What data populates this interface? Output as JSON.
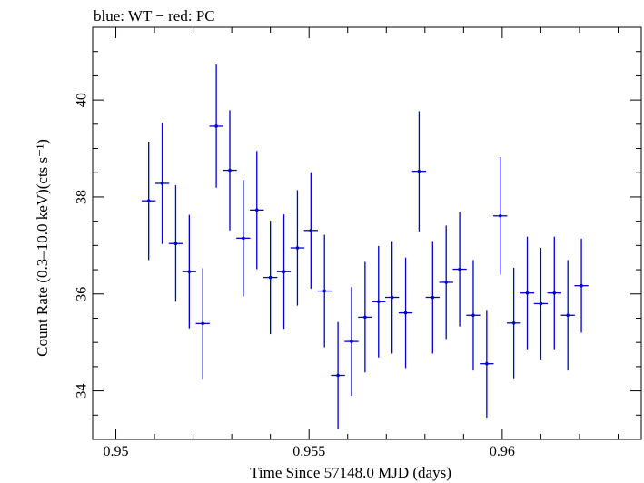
{
  "chart_data": {
    "type": "scatter",
    "title": "blue: WT − red: PC",
    "xlabel": "Time Since 57148.0 MJD (days)",
    "ylabel": "Count Rate (0.3–10.0 keV)(cts s⁻¹)",
    "xlim": [
      0.9494,
      0.9636
    ],
    "ylim": [
      33.0,
      41.5
    ],
    "x_ticks": [
      0.95,
      0.955,
      0.96
    ],
    "x_tick_labels": [
      "0.95",
      "0.955",
      "0.96"
    ],
    "y_ticks": [
      34,
      36,
      38,
      40
    ],
    "y_tick_labels": [
      "34",
      "36",
      "38",
      "40"
    ],
    "grid": false,
    "legend": "none",
    "colors": {
      "WT": "#0000cc",
      "axes": "#000000"
    },
    "series": [
      {
        "name": "WT",
        "x_halfwidth": 0.00018,
        "points": [
          {
            "x": 0.95085,
            "y": 37.92,
            "err": 1.22
          },
          {
            "x": 0.9512,
            "y": 38.28,
            "err": 1.25
          },
          {
            "x": 0.95155,
            "y": 37.04,
            "err": 1.2
          },
          {
            "x": 0.9519,
            "y": 36.46,
            "err": 1.17
          },
          {
            "x": 0.95225,
            "y": 35.39,
            "err": 1.14
          },
          {
            "x": 0.9526,
            "y": 39.46,
            "err": 1.27
          },
          {
            "x": 0.95295,
            "y": 38.55,
            "err": 1.24
          },
          {
            "x": 0.9533,
            "y": 37.15,
            "err": 1.2
          },
          {
            "x": 0.95365,
            "y": 37.73,
            "err": 1.22
          },
          {
            "x": 0.954,
            "y": 36.34,
            "err": 1.17
          },
          {
            "x": 0.95435,
            "y": 36.46,
            "err": 1.18
          },
          {
            "x": 0.9547,
            "y": 36.95,
            "err": 1.19
          },
          {
            "x": 0.95505,
            "y": 37.31,
            "err": 1.2
          },
          {
            "x": 0.9554,
            "y": 36.06,
            "err": 1.16
          },
          {
            "x": 0.95575,
            "y": 34.32,
            "err": 1.1
          },
          {
            "x": 0.9561,
            "y": 35.02,
            "err": 1.12
          },
          {
            "x": 0.95645,
            "y": 35.52,
            "err": 1.14
          },
          {
            "x": 0.9568,
            "y": 35.84,
            "err": 1.15
          },
          {
            "x": 0.95715,
            "y": 35.93,
            "err": 1.16
          },
          {
            "x": 0.9575,
            "y": 35.61,
            "err": 1.14
          },
          {
            "x": 0.95785,
            "y": 38.53,
            "err": 1.24
          },
          {
            "x": 0.9582,
            "y": 35.93,
            "err": 1.16
          },
          {
            "x": 0.95855,
            "y": 36.24,
            "err": 1.17
          },
          {
            "x": 0.9589,
            "y": 36.51,
            "err": 1.18
          },
          {
            "x": 0.95925,
            "y": 35.56,
            "err": 1.14
          },
          {
            "x": 0.9596,
            "y": 34.56,
            "err": 1.11
          },
          {
            "x": 0.95995,
            "y": 37.61,
            "err": 1.21
          },
          {
            "x": 0.9603,
            "y": 35.4,
            "err": 1.14
          },
          {
            "x": 0.96065,
            "y": 36.02,
            "err": 1.16
          },
          {
            "x": 0.961,
            "y": 35.8,
            "err": 1.15
          },
          {
            "x": 0.96135,
            "y": 36.02,
            "err": 1.16
          },
          {
            "x": 0.9617,
            "y": 35.56,
            "err": 1.14
          },
          {
            "x": 0.96205,
            "y": 36.17,
            "err": 0.97
          }
        ]
      }
    ]
  }
}
